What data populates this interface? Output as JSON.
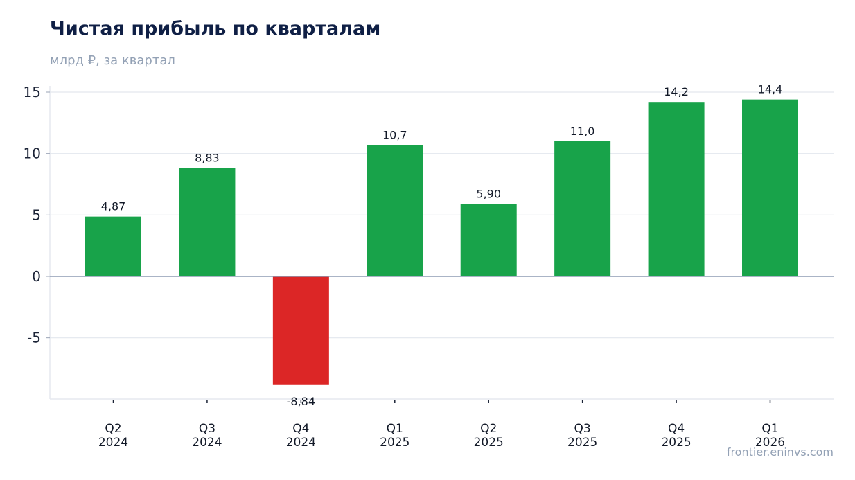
{
  "title": "Чистая прибыль по кварталам",
  "subtitle": "млрд ₽, за квартал",
  "source": "frontier.eninvs.com",
  "colors": {
    "positive": "#18a34a",
    "negative": "#dc2626",
    "grid": "#e3e7ee",
    "zero_line": "#8e9bb3",
    "axis_text": "#1b2336",
    "label_text": "#111827"
  },
  "chart_data": {
    "type": "bar",
    "categories": [
      [
        "Q2",
        "2024"
      ],
      [
        "Q3",
        "2024"
      ],
      [
        "Q4",
        "2024"
      ],
      [
        "Q1",
        "2025"
      ],
      [
        "Q2",
        "2025"
      ],
      [
        "Q3",
        "2025"
      ],
      [
        "Q4",
        "2025"
      ],
      [
        "Q1",
        "2026"
      ]
    ],
    "values": [
      4.87,
      8.83,
      -8.84,
      10.7,
      5.9,
      11.0,
      14.2,
      14.4
    ],
    "value_labels": [
      "4,87",
      "8,83",
      "-8,84",
      "10,7",
      "5,90",
      "11,0",
      "14,2",
      "14,4"
    ],
    "yticks": [
      15,
      10,
      5,
      0,
      -5
    ],
    "ytick_labels": [
      "15",
      "10",
      "5",
      "0",
      "-5"
    ],
    "ylim": [
      -10,
      15.5
    ],
    "grid": true,
    "legend": "none"
  }
}
